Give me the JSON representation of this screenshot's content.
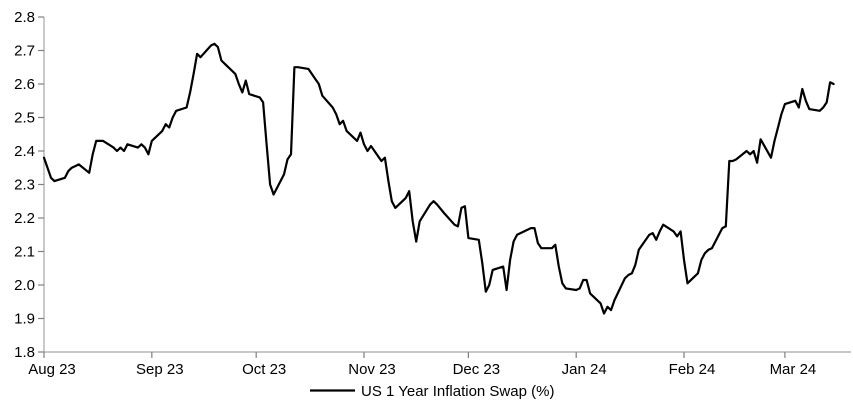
{
  "chart_data": {
    "type": "line",
    "title": "",
    "legend": "US 1 Year Inflation Swap (%)",
    "legend_position": "bottom-center",
    "grid": "off",
    "background": "#ffffff",
    "axis_color": "#a6a6a6",
    "tick_color": "#808080",
    "text_color": "#000000",
    "y_axis": {
      "min": 1.8,
      "max": 2.8,
      "step": 0.1,
      "tick_labels": [
        "1.8",
        "1.9",
        "2.0",
        "2.1",
        "2.2",
        "2.3",
        "2.4",
        "2.5",
        "2.6",
        "2.7",
        "2.8"
      ]
    },
    "x_axis": {
      "start_date": "2023-08-01",
      "domain_days": 232,
      "ticks": [
        {
          "label": "Aug 23",
          "day": 0
        },
        {
          "label": "Sep 23",
          "day": 31
        },
        {
          "label": "Oct 23",
          "day": 61
        },
        {
          "label": "Nov 23",
          "day": 92
        },
        {
          "label": "Dec 23",
          "day": 122
        },
        {
          "label": "Jan 24",
          "day": 153
        },
        {
          "label": "Feb 24",
          "day": 184
        },
        {
          "label": "Mar 24",
          "day": 213
        }
      ]
    },
    "series": [
      {
        "name": "US 1 Year Inflation Swap (%)",
        "color": "#000000",
        "width": 2.2,
        "points": [
          [
            "2023-08-01",
            2.38
          ],
          [
            "2023-08-02",
            2.35
          ],
          [
            "2023-08-03",
            2.32
          ],
          [
            "2023-08-04",
            2.31
          ],
          [
            "2023-08-07",
            2.32
          ],
          [
            "2023-08-08",
            2.34
          ],
          [
            "2023-08-09",
            2.35
          ],
          [
            "2023-08-10",
            2.355
          ],
          [
            "2023-08-11",
            2.36
          ],
          [
            "2023-08-14",
            2.335
          ],
          [
            "2023-08-15",
            2.39
          ],
          [
            "2023-08-16",
            2.43
          ],
          [
            "2023-08-17",
            2.43
          ],
          [
            "2023-08-18",
            2.43
          ],
          [
            "2023-08-21",
            2.41
          ],
          [
            "2023-08-22",
            2.4
          ],
          [
            "2023-08-23",
            2.41
          ],
          [
            "2023-08-24",
            2.4
          ],
          [
            "2023-08-25",
            2.42
          ],
          [
            "2023-08-28",
            2.41
          ],
          [
            "2023-08-29",
            2.42
          ],
          [
            "2023-08-30",
            2.41
          ],
          [
            "2023-08-31",
            2.39
          ],
          [
            "2023-09-01",
            2.43
          ],
          [
            "2023-09-04",
            2.46
          ],
          [
            "2023-09-05",
            2.48
          ],
          [
            "2023-09-06",
            2.47
          ],
          [
            "2023-09-07",
            2.5
          ],
          [
            "2023-09-08",
            2.52
          ],
          [
            "2023-09-11",
            2.53
          ],
          [
            "2023-09-12",
            2.575
          ],
          [
            "2023-09-13",
            2.63
          ],
          [
            "2023-09-14",
            2.69
          ],
          [
            "2023-09-15",
            2.68
          ],
          [
            "2023-09-18",
            2.715
          ],
          [
            "2023-09-19",
            2.72
          ],
          [
            "2023-09-20",
            2.71
          ],
          [
            "2023-09-21",
            2.67
          ],
          [
            "2023-09-22",
            2.66
          ],
          [
            "2023-09-25",
            2.63
          ],
          [
            "2023-09-26",
            2.6
          ],
          [
            "2023-09-27",
            2.575
          ],
          [
            "2023-09-28",
            2.61
          ],
          [
            "2023-09-29",
            2.57
          ],
          [
            "2023-10-02",
            2.56
          ],
          [
            "2023-10-03",
            2.545
          ],
          [
            "2023-10-04",
            2.42
          ],
          [
            "2023-10-05",
            2.3
          ],
          [
            "2023-10-06",
            2.27
          ],
          [
            "2023-10-09",
            2.33
          ],
          [
            "2023-10-10",
            2.375
          ],
          [
            "2023-10-11",
            2.39
          ],
          [
            "2023-10-12",
            2.65
          ],
          [
            "2023-10-13",
            2.65
          ],
          [
            "2023-10-16",
            2.645
          ],
          [
            "2023-10-17",
            2.63
          ],
          [
            "2023-10-18",
            2.615
          ],
          [
            "2023-10-19",
            2.6
          ],
          [
            "2023-10-20",
            2.565
          ],
          [
            "2023-10-23",
            2.53
          ],
          [
            "2023-10-24",
            2.51
          ],
          [
            "2023-10-25",
            2.48
          ],
          [
            "2023-10-26",
            2.49
          ],
          [
            "2023-10-27",
            2.46
          ],
          [
            "2023-10-30",
            2.43
          ],
          [
            "2023-10-31",
            2.455
          ],
          [
            "2023-11-01",
            2.42
          ],
          [
            "2023-11-02",
            2.4
          ],
          [
            "2023-11-03",
            2.415
          ],
          [
            "2023-11-06",
            2.37
          ],
          [
            "2023-11-07",
            2.38
          ],
          [
            "2023-11-08",
            2.31
          ],
          [
            "2023-11-09",
            2.25
          ],
          [
            "2023-11-10",
            2.23
          ],
          [
            "2023-11-13",
            2.26
          ],
          [
            "2023-11-14",
            2.28
          ],
          [
            "2023-11-15",
            2.19
          ],
          [
            "2023-11-16",
            2.13
          ],
          [
            "2023-11-17",
            2.19
          ],
          [
            "2023-11-20",
            2.24
          ],
          [
            "2023-11-21",
            2.25
          ],
          [
            "2023-11-22",
            2.24
          ],
          [
            "2023-11-24",
            2.215
          ],
          [
            "2023-11-27",
            2.18
          ],
          [
            "2023-11-28",
            2.175
          ],
          [
            "2023-11-29",
            2.23
          ],
          [
            "2023-11-30",
            2.235
          ],
          [
            "2023-12-01",
            2.14
          ],
          [
            "2023-12-04",
            2.135
          ],
          [
            "2023-12-05",
            2.065
          ],
          [
            "2023-12-06",
            1.98
          ],
          [
            "2023-12-07",
            2.0
          ],
          [
            "2023-12-08",
            2.045
          ],
          [
            "2023-12-11",
            2.055
          ],
          [
            "2023-12-12",
            1.985
          ],
          [
            "2023-12-13",
            2.075
          ],
          [
            "2023-12-14",
            2.13
          ],
          [
            "2023-12-15",
            2.15
          ],
          [
            "2023-12-18",
            2.165
          ],
          [
            "2023-12-19",
            2.17
          ],
          [
            "2023-12-20",
            2.17
          ],
          [
            "2023-12-21",
            2.125
          ],
          [
            "2023-12-22",
            2.11
          ],
          [
            "2023-12-25",
            2.11
          ],
          [
            "2023-12-26",
            2.12
          ],
          [
            "2023-12-27",
            2.055
          ],
          [
            "2023-12-28",
            2.005
          ],
          [
            "2023-12-29",
            1.99
          ],
          [
            "2024-01-01",
            1.985
          ],
          [
            "2024-01-02",
            1.99
          ],
          [
            "2024-01-03",
            2.015
          ],
          [
            "2024-01-04",
            2.015
          ],
          [
            "2024-01-05",
            1.975
          ],
          [
            "2024-01-08",
            1.945
          ],
          [
            "2024-01-09",
            1.915
          ],
          [
            "2024-01-10",
            1.935
          ],
          [
            "2024-01-11",
            1.925
          ],
          [
            "2024-01-12",
            1.955
          ],
          [
            "2024-01-15",
            2.02
          ],
          [
            "2024-01-16",
            2.03
          ],
          [
            "2024-01-17",
            2.035
          ],
          [
            "2024-01-18",
            2.06
          ],
          [
            "2024-01-19",
            2.105
          ],
          [
            "2024-01-22",
            2.15
          ],
          [
            "2024-01-23",
            2.155
          ],
          [
            "2024-01-24",
            2.135
          ],
          [
            "2024-01-25",
            2.16
          ],
          [
            "2024-01-26",
            2.18
          ],
          [
            "2024-01-29",
            2.16
          ],
          [
            "2024-01-30",
            2.145
          ],
          [
            "2024-01-31",
            2.16
          ],
          [
            "2024-02-01",
            2.075
          ],
          [
            "2024-02-02",
            2.005
          ],
          [
            "2024-02-05",
            2.035
          ],
          [
            "2024-02-06",
            2.075
          ],
          [
            "2024-02-07",
            2.095
          ],
          [
            "2024-02-08",
            2.105
          ],
          [
            "2024-02-09",
            2.11
          ],
          [
            "2024-02-12",
            2.17
          ],
          [
            "2024-02-13",
            2.175
          ],
          [
            "2024-02-14",
            2.37
          ],
          [
            "2024-02-15",
            2.37
          ],
          [
            "2024-02-16",
            2.375
          ],
          [
            "2024-02-19",
            2.4
          ],
          [
            "2024-02-20",
            2.39
          ],
          [
            "2024-02-21",
            2.4
          ],
          [
            "2024-02-22",
            2.365
          ],
          [
            "2024-02-23",
            2.435
          ],
          [
            "2024-02-26",
            2.38
          ],
          [
            "2024-02-27",
            2.43
          ],
          [
            "2024-02-28",
            2.47
          ],
          [
            "2024-02-29",
            2.51
          ],
          [
            "2024-03-01",
            2.54
          ],
          [
            "2024-03-04",
            2.55
          ],
          [
            "2024-03-05",
            2.53
          ],
          [
            "2024-03-06",
            2.585
          ],
          [
            "2024-03-07",
            2.55
          ],
          [
            "2024-03-08",
            2.525
          ],
          [
            "2024-03-11",
            2.52
          ],
          [
            "2024-03-12",
            2.53
          ],
          [
            "2024-03-13",
            2.545
          ],
          [
            "2024-03-14",
            2.605
          ],
          [
            "2024-03-15",
            2.6
          ]
        ]
      }
    ]
  }
}
